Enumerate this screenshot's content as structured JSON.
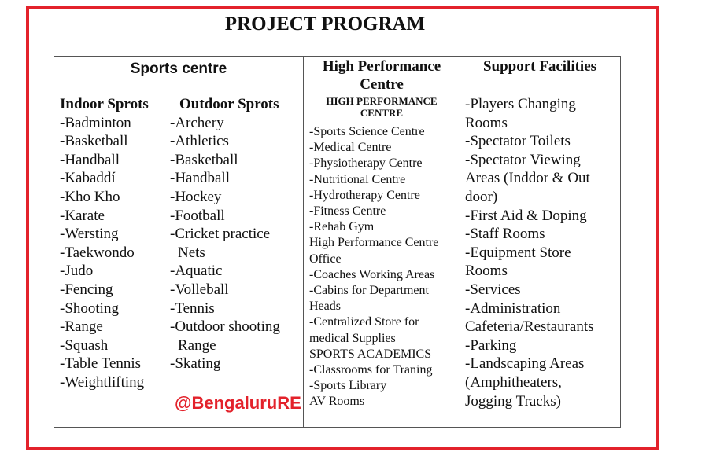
{
  "title": "PROJECT PROGRAM",
  "headers": {
    "sports": "Sports centre",
    "hpc_line1": "High Performance",
    "hpc_line2": "Centre",
    "support": "Support Facilities"
  },
  "indoor": {
    "heading": "Indoor Sprots",
    "items": [
      "-Badminton",
      "-Basketball",
      "-Handball",
      "-Kabaddí",
      "-Kho Kho",
      "-Karate",
      "-Wersting",
      "-Taekwondo",
      "-Judo",
      "-Fencing",
      "-Shooting",
      "-Range",
      "-Squash",
      "-Table Tennis",
      "-Weightlifting"
    ]
  },
  "outdoor": {
    "heading": "Outdoor Sprots",
    "items": [
      "-Archery",
      "-Athletics",
      "-Basketball",
      "-Handball",
      "-Hockey",
      "-Football",
      "-Cricket practice",
      "  Nets",
      "-Aquatic",
      "-Volleball",
      "-Tennis",
      "-Outdoor shooting",
      "  Range",
      "-Skating"
    ]
  },
  "hpc": {
    "subheading_line1": "HIGH PERFORMANCE",
    "subheading_line2": "CENTRE",
    "items": [
      "-Sports Science Centre",
      "-Medical Centre",
      "-Physiotherapy Centre",
      "-Nutritional Centre",
      "-Hydrotherapy Centre",
      "-Fitness Centre",
      "-Rehab Gym",
      "High Performance Centre",
      "Office",
      "-Coaches Working Areas",
      "-Cabins for Department",
      "Heads",
      "-Centralized Store for",
      "medical Supplies",
      "SPORTS ACADEMICS",
      "-Classrooms for Traning",
      "-Sports Library",
      "AV Rooms"
    ]
  },
  "support": {
    "items": [
      "-Players Changing",
      "Rooms",
      "-Spectator Toilets",
      "-Spectator Viewing",
      "Areas (Inddor & Out",
      "door)",
      "-First Aid & Doping",
      "-Staff Rooms",
      "-Equipment Store",
      "Rooms",
      "-Services",
      "-Administration",
      "Cafeteria/Restaurants",
      "-Parking",
      "-Landscaping Areas",
      "(Amphitheaters,",
      "Jogging Tracks)"
    ]
  },
  "watermark": "@BengaluruRE",
  "colors": {
    "frame": "#e3222b",
    "watermark": "#e3222b"
  }
}
